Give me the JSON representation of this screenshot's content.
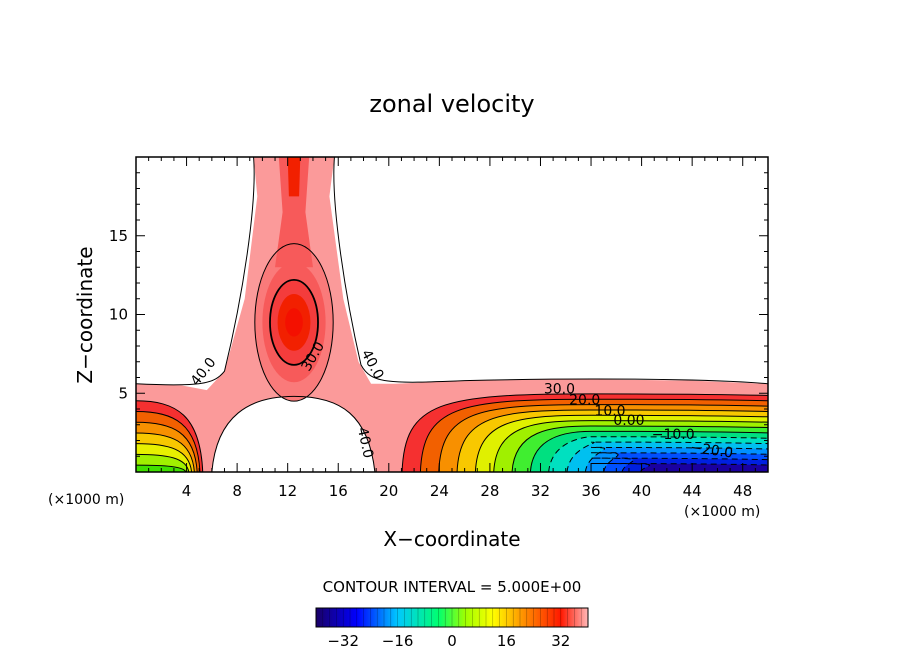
{
  "chart_data": {
    "type": "contour",
    "title": "zonal velocity",
    "xlabel": "X−coordinate",
    "ylabel": "Z−coordinate",
    "x_unit": "(×1000 m)",
    "z_unit": "(×1000 m)",
    "xlim": [
      0,
      50
    ],
    "ylim": [
      0,
      20
    ],
    "x_ticks": [
      4,
      8,
      12,
      16,
      20,
      24,
      28,
      32,
      36,
      40,
      44,
      48
    ],
    "y_ticks": [
      5,
      10,
      15
    ],
    "contour_interval_text": "CONTOUR INTERVAL = 5.000E+00",
    "contour_interval": 5,
    "contour_labels": [
      "40.0",
      "30.0",
      "40.0",
      "40.0",
      "30.0",
      "20.0",
      "10.0",
      "0.00",
      "−10.0",
      "−20.0"
    ],
    "colorbar": {
      "range": [
        -40,
        40
      ],
      "ticks": [
        -32,
        -16,
        0,
        16,
        32
      ],
      "tick_labels": [
        "−32",
        "−16",
        "0",
        "16",
        "32"
      ]
    },
    "features": {
      "updraft_core_x": 12.5,
      "updraft_core_z": 9.5,
      "updraft_core_max": 35,
      "jet_core_x": 38,
      "jet_core_z": 0.5,
      "jet_core_min": -30,
      "top_fill_level": 40
    }
  }
}
